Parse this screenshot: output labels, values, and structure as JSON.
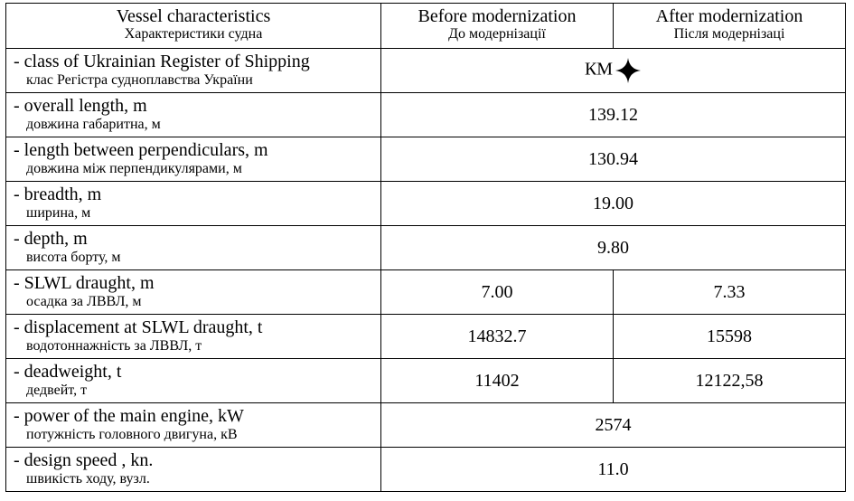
{
  "header": {
    "characteristics_en": "Vessel characteristics",
    "characteristics_ua": "Характеристики судна",
    "before_en": "Before modernization",
    "before_ua": "До модернізації",
    "after_en": "After modernization",
    "after_ua": "Після модернізаці"
  },
  "rows": [
    {
      "en": "- class of Ukrainian Register of Shipping",
      "ua": "клас Регістра судноплавства України",
      "value": "КМ",
      "icon": "four-pointed-star-icon"
    },
    {
      "en": "- overall length, m",
      "ua": "довжина габаритна, м",
      "value": "139.12"
    },
    {
      "en": "- length between perpendiculars, m",
      "ua": "довжина між перпендикулярами, м",
      "value": "130.94"
    },
    {
      "en": "- breadth, m",
      "ua": "ширина, м",
      "value": "19.00"
    },
    {
      "en": "- depth, m",
      "ua": "висота борту, м",
      "value": "9.80"
    },
    {
      "en": "- SLWL draught, m",
      "ua": "осадка за ЛВВЛ, м",
      "before": "7.00",
      "after": "7.33"
    },
    {
      "en": "- displacement at SLWL draught, t",
      "ua": "водотоннажність за ЛВВЛ, т",
      "before": "14832.7",
      "after": "15598"
    },
    {
      "en": "- deadweight, t",
      "ua": "дедвейт, т",
      "before": "11402",
      "after": "12122,58"
    },
    {
      "en": "- power of the main engine, kW",
      "ua": "потужність головного двигуна, кВ",
      "value": "2574"
    },
    {
      "en": "- design speed , kn.",
      "ua": "швикість ходу, вузл.",
      "value": "11.0"
    }
  ]
}
